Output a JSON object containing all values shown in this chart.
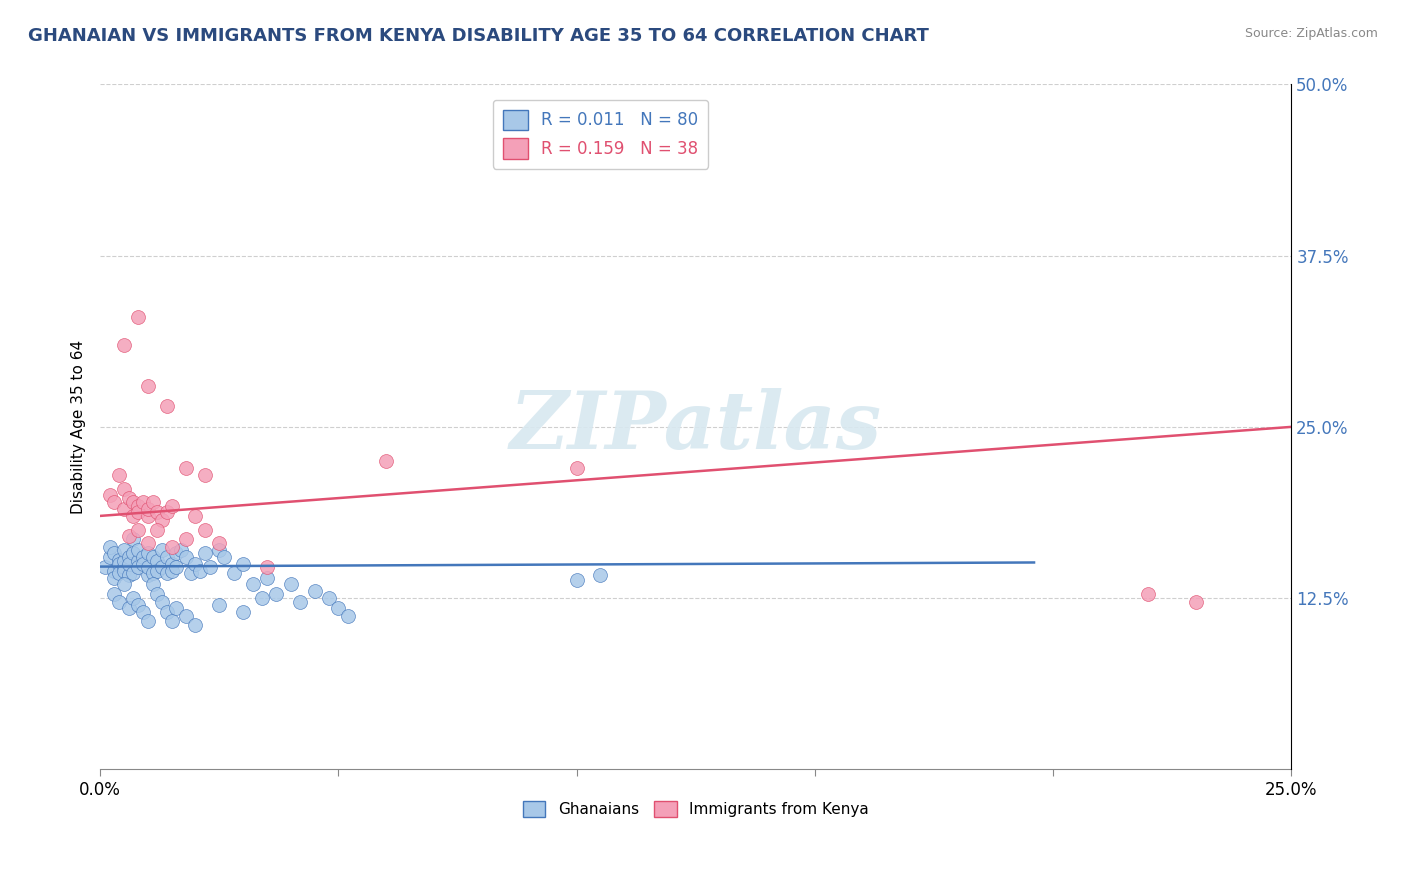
{
  "title": "GHANAIAN VS IMMIGRANTS FROM KENYA DISABILITY AGE 35 TO 64 CORRELATION CHART",
  "source": "Source: ZipAtlas.com",
  "ylabel": "Disability Age 35 to 64",
  "xlim": [
    0.0,
    0.25
  ],
  "ylim": [
    0.0,
    0.5
  ],
  "xtick_positions": [
    0.0,
    0.05,
    0.1,
    0.15,
    0.2,
    0.25
  ],
  "xticklabels_show": [
    "0.0%",
    "",
    "",
    "",
    "",
    "25.0%"
  ],
  "yticks_right": [
    0.125,
    0.25,
    0.375,
    0.5
  ],
  "yticklabels_right": [
    "12.5%",
    "25.0%",
    "37.5%",
    "50.0%"
  ],
  "legend_r1": "R = 0.011",
  "legend_n1": "N = 80",
  "legend_r2": "R = 0.159",
  "legend_n2": "N = 38",
  "color_blue": "#a8c8e8",
  "color_pink": "#f4a0b8",
  "line_color_blue": "#4477bb",
  "line_color_pink": "#e05070",
  "watermark": "ZIPatlas",
  "background_color": "#ffffff",
  "grid_color": "#bbbbbb",
  "blue_line_x": [
    0.0,
    0.196
  ],
  "blue_line_y": [
    0.148,
    0.151
  ],
  "pink_line_x": [
    0.0,
    0.25
  ],
  "pink_line_y": [
    0.185,
    0.25
  ],
  "blue_points_x": [
    0.001,
    0.002,
    0.002,
    0.003,
    0.003,
    0.003,
    0.004,
    0.004,
    0.004,
    0.005,
    0.005,
    0.005,
    0.005,
    0.006,
    0.006,
    0.006,
    0.007,
    0.007,
    0.007,
    0.008,
    0.008,
    0.008,
    0.009,
    0.009,
    0.01,
    0.01,
    0.01,
    0.011,
    0.011,
    0.012,
    0.012,
    0.013,
    0.013,
    0.014,
    0.014,
    0.015,
    0.015,
    0.016,
    0.016,
    0.017,
    0.018,
    0.019,
    0.02,
    0.021,
    0.022,
    0.023,
    0.025,
    0.026,
    0.028,
    0.03,
    0.032,
    0.034,
    0.035,
    0.037,
    0.04,
    0.042,
    0.045,
    0.048,
    0.05,
    0.052,
    0.003,
    0.004,
    0.005,
    0.006,
    0.007,
    0.008,
    0.009,
    0.01,
    0.011,
    0.012,
    0.013,
    0.014,
    0.015,
    0.016,
    0.018,
    0.02,
    0.025,
    0.03,
    0.1,
    0.105
  ],
  "blue_points_y": [
    0.148,
    0.155,
    0.162,
    0.145,
    0.158,
    0.14,
    0.153,
    0.15,
    0.143,
    0.148,
    0.152,
    0.16,
    0.145,
    0.155,
    0.142,
    0.15,
    0.168,
    0.158,
    0.143,
    0.152,
    0.16,
    0.148,
    0.155,
    0.15,
    0.142,
    0.158,
    0.148,
    0.155,
    0.143,
    0.152,
    0.145,
    0.16,
    0.148,
    0.155,
    0.143,
    0.15,
    0.145,
    0.158,
    0.148,
    0.16,
    0.155,
    0.143,
    0.15,
    0.145,
    0.158,
    0.148,
    0.16,
    0.155,
    0.143,
    0.15,
    0.135,
    0.125,
    0.14,
    0.128,
    0.135,
    0.122,
    0.13,
    0.125,
    0.118,
    0.112,
    0.128,
    0.122,
    0.135,
    0.118,
    0.125,
    0.12,
    0.115,
    0.108,
    0.135,
    0.128,
    0.122,
    0.115,
    0.108,
    0.118,
    0.112,
    0.105,
    0.12,
    0.115,
    0.138,
    0.142
  ],
  "pink_points_x": [
    0.002,
    0.003,
    0.004,
    0.005,
    0.005,
    0.006,
    0.007,
    0.007,
    0.008,
    0.008,
    0.009,
    0.01,
    0.01,
    0.011,
    0.012,
    0.013,
    0.014,
    0.015,
    0.02,
    0.022,
    0.005,
    0.008,
    0.01,
    0.014,
    0.018,
    0.022,
    0.06,
    0.1,
    0.006,
    0.008,
    0.01,
    0.012,
    0.015,
    0.018,
    0.025,
    0.035,
    0.22,
    0.23
  ],
  "pink_points_y": [
    0.2,
    0.195,
    0.215,
    0.205,
    0.19,
    0.198,
    0.195,
    0.185,
    0.192,
    0.188,
    0.195,
    0.185,
    0.19,
    0.195,
    0.188,
    0.182,
    0.188,
    0.192,
    0.185,
    0.175,
    0.31,
    0.33,
    0.28,
    0.265,
    0.22,
    0.215,
    0.225,
    0.22,
    0.17,
    0.175,
    0.165,
    0.175,
    0.162,
    0.168,
    0.165,
    0.148,
    0.128,
    0.122
  ]
}
